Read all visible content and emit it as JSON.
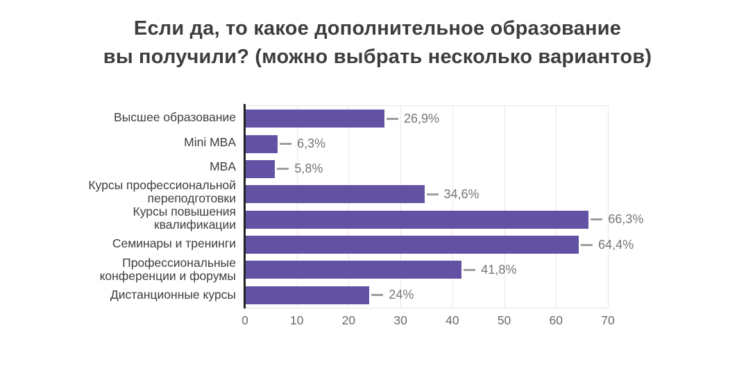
{
  "title": {
    "lines": [
      "Если да, то какое дополнительное образование",
      "вы получили? (можно выбрать несколько вариантов)"
    ]
  },
  "colors": {
    "background": "#ffffff",
    "title": "#3d3d3d",
    "bar": "#6352a3",
    "axis": "#222222",
    "grid": "#e7e7e7",
    "tick_label": "#696969",
    "value_label": "#757575",
    "category_label": "#3d3d3d",
    "leader_line": "#9e9e9e"
  },
  "chart_data": {
    "type": "bar",
    "orientation": "horizontal",
    "title": "Если да, то какое дополнительное образование вы получили? (можно выбрать несколько вариантов)",
    "categories": [
      "Высшее образование",
      "Mini MBA",
      "MBA",
      "Курсы профессиональной переподготовки",
      "Курсы повышения квалификации",
      "Семинары и тренинги",
      "Профессиональные конференции и форумы",
      "Дистанционные курсы"
    ],
    "category_lines": [
      [
        "Высшее образование"
      ],
      [
        "Mini MBA"
      ],
      [
        "MBA"
      ],
      [
        "Курсы профессиональной",
        "переподготовки"
      ],
      [
        "Курсы повышения",
        "квалификации"
      ],
      [
        "Семинары и тренинги"
      ],
      [
        "Профессиональные",
        "конференции и форумы"
      ],
      [
        "Дистанционные курсы"
      ]
    ],
    "values": [
      26.9,
      6.3,
      5.8,
      34.6,
      66.3,
      64.4,
      41.8,
      24
    ],
    "value_labels": [
      "26,9%",
      "6,3%",
      "5,8%",
      "34,6%",
      "66,3%",
      "64,4%",
      "41,8%",
      "24%"
    ],
    "xlabel": "",
    "ylabel": "",
    "x_ticks": [
      0,
      10,
      20,
      30,
      40,
      50,
      60,
      70
    ],
    "xlim": [
      0,
      70
    ],
    "grid": true,
    "legend": false
  }
}
